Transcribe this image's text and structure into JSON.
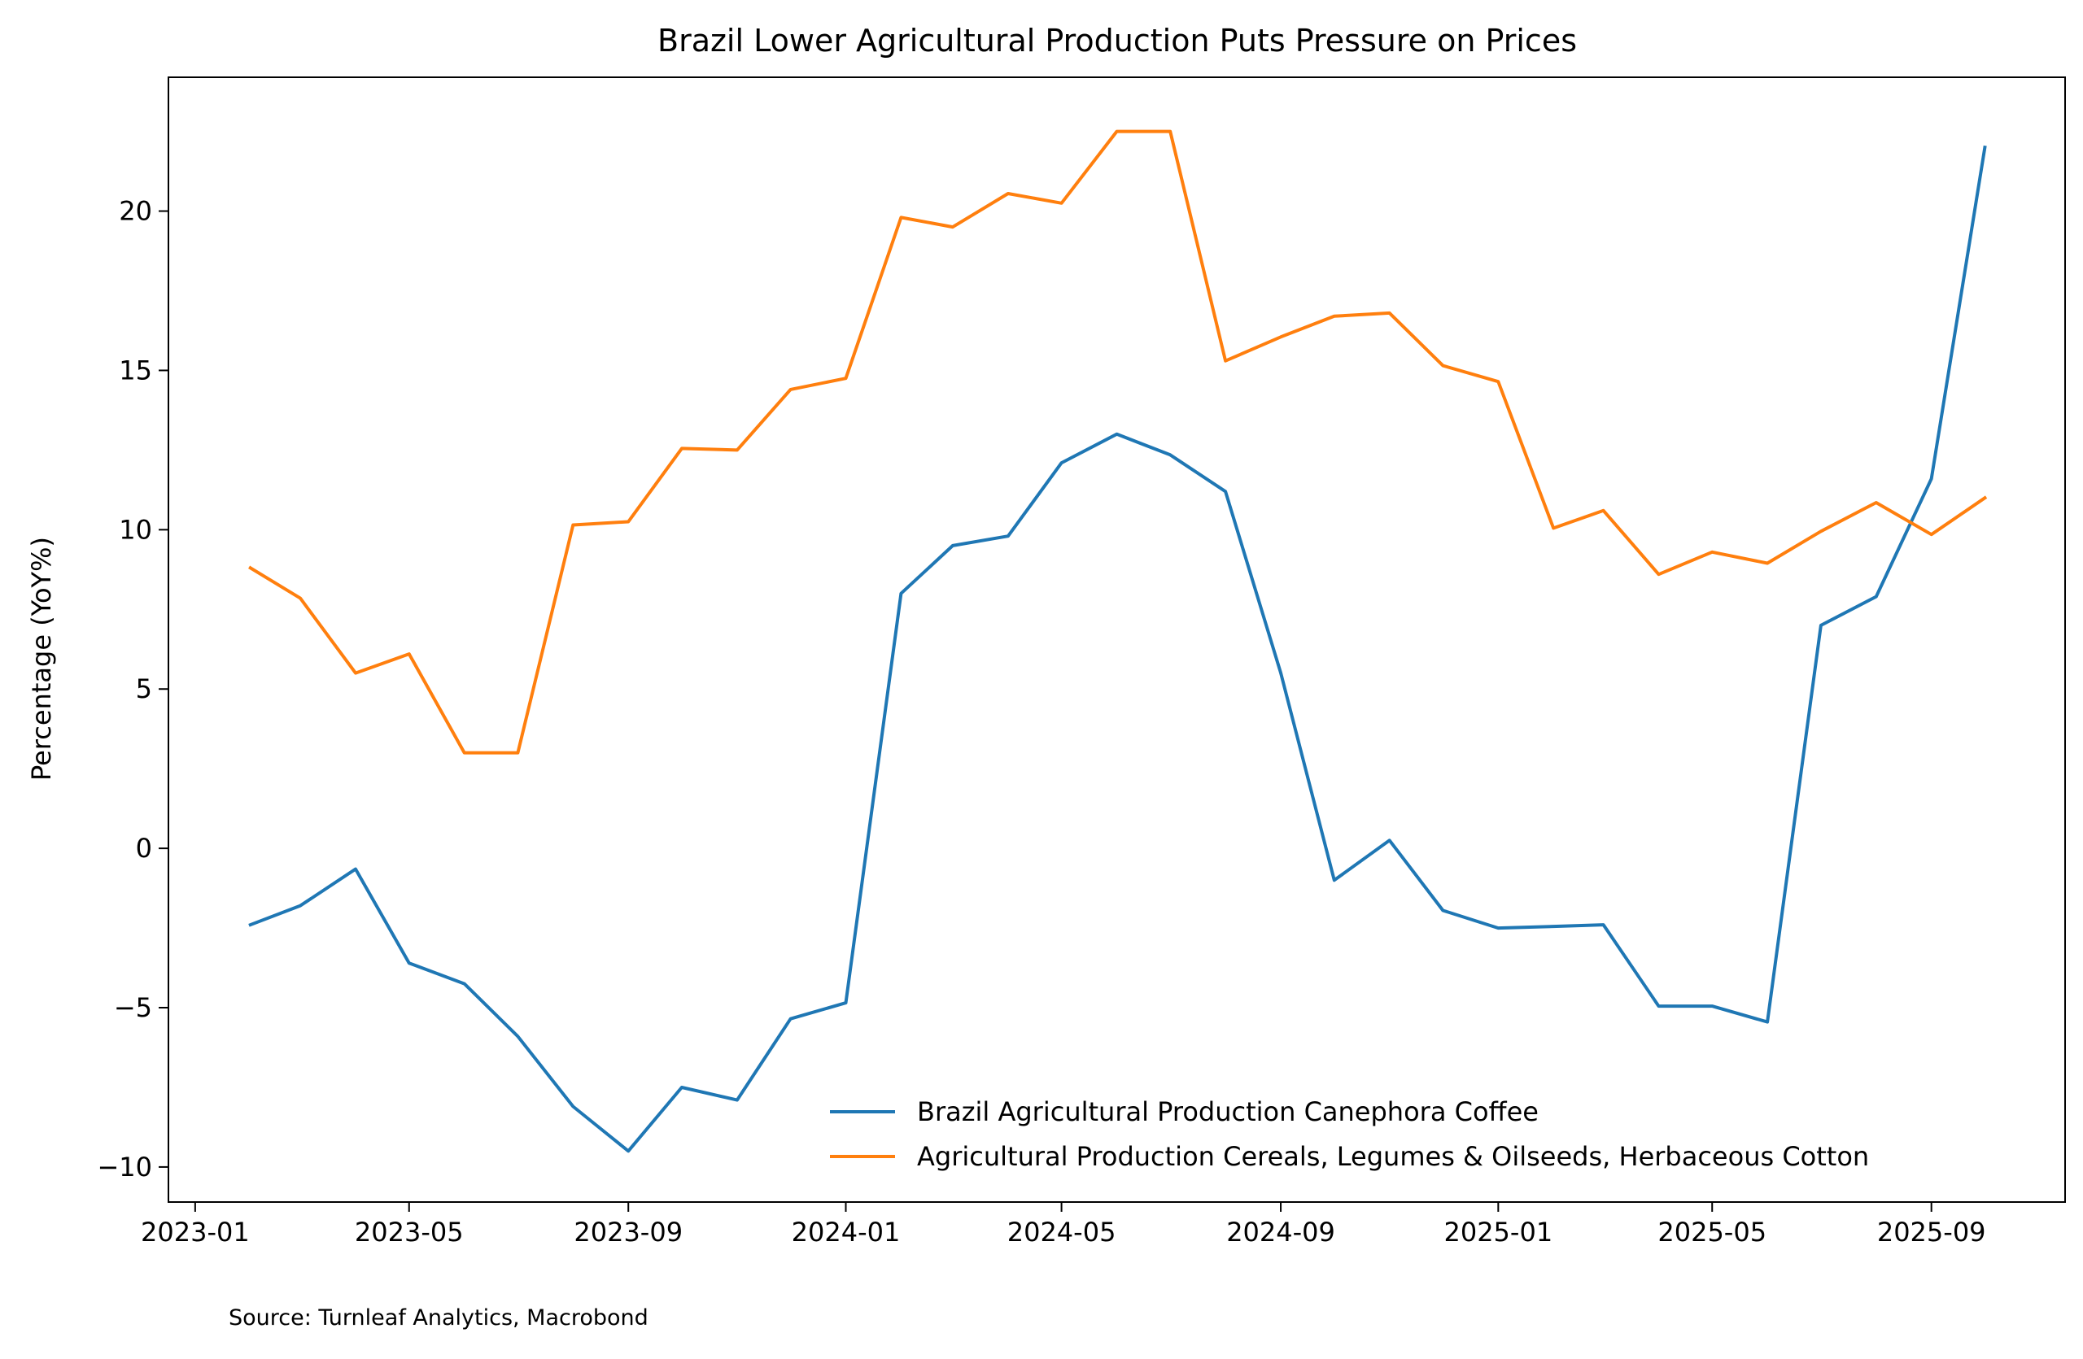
{
  "chart_data": {
    "type": "line",
    "title": "Brazil Lower Agricultural Production Puts Pressure on Prices",
    "xlabel": "",
    "ylabel": "Percentage (YoY%)",
    "source": "Source: Turnleaf Analytics, Macrobond",
    "x": [
      "2023-02",
      "2023-03",
      "2023-04",
      "2023-05",
      "2023-06",
      "2023-07",
      "2023-08",
      "2023-09",
      "2023-10",
      "2023-11",
      "2023-12",
      "2024-01",
      "2024-02",
      "2024-03",
      "2024-04",
      "2024-05",
      "2024-06",
      "2024-07",
      "2024-08",
      "2024-09",
      "2024-10",
      "2024-11",
      "2024-12",
      "2025-01",
      "2025-02",
      "2025-03",
      "2025-04",
      "2025-05",
      "2025-06",
      "2025-07",
      "2025-08",
      "2025-09",
      "2025-10"
    ],
    "xticks": [
      "2023-01",
      "2023-05",
      "2023-09",
      "2024-01",
      "2024-05",
      "2024-09",
      "2025-01",
      "2025-05",
      "2025-09"
    ],
    "xlim": [
      "2022-12-17",
      "2025-11-15"
    ],
    "yticks": [
      -10,
      -5,
      0,
      5,
      10,
      15,
      20
    ],
    "ylim": [
      -11.1,
      24.2
    ],
    "legend_position": "lower right",
    "series": [
      {
        "name": "Brazil Agricultural Production Canephora Coffee",
        "color": "#1f77b4",
        "values": [
          -2.4,
          -1.8,
          -0.65,
          -3.6,
          -4.25,
          -5.9,
          -8.1,
          -9.5,
          -7.5,
          -7.9,
          -5.35,
          -4.85,
          8.0,
          9.5,
          9.8,
          12.1,
          13.0,
          12.35,
          11.2,
          5.5,
          -1.0,
          0.25,
          -1.95,
          -2.5,
          -2.45,
          -2.4,
          -4.95,
          -4.95,
          -5.45,
          7.0,
          7.9,
          11.6,
          22.0
        ]
      },
      {
        "name": "Agricultural Production Cereals, Legumes & Oilseeds, Herbaceous Cotton",
        "color": "#ff7f0e",
        "values": [
          8.8,
          7.85,
          5.5,
          6.1,
          3.0,
          3.0,
          10.15,
          10.25,
          12.55,
          12.5,
          14.4,
          14.75,
          19.8,
          19.5,
          20.55,
          20.25,
          22.5,
          22.5,
          15.3,
          16.05,
          16.7,
          16.8,
          15.15,
          14.65,
          10.05,
          10.6,
          8.6,
          9.3,
          8.95,
          9.95,
          10.85,
          9.85,
          11.0
        ]
      }
    ]
  }
}
